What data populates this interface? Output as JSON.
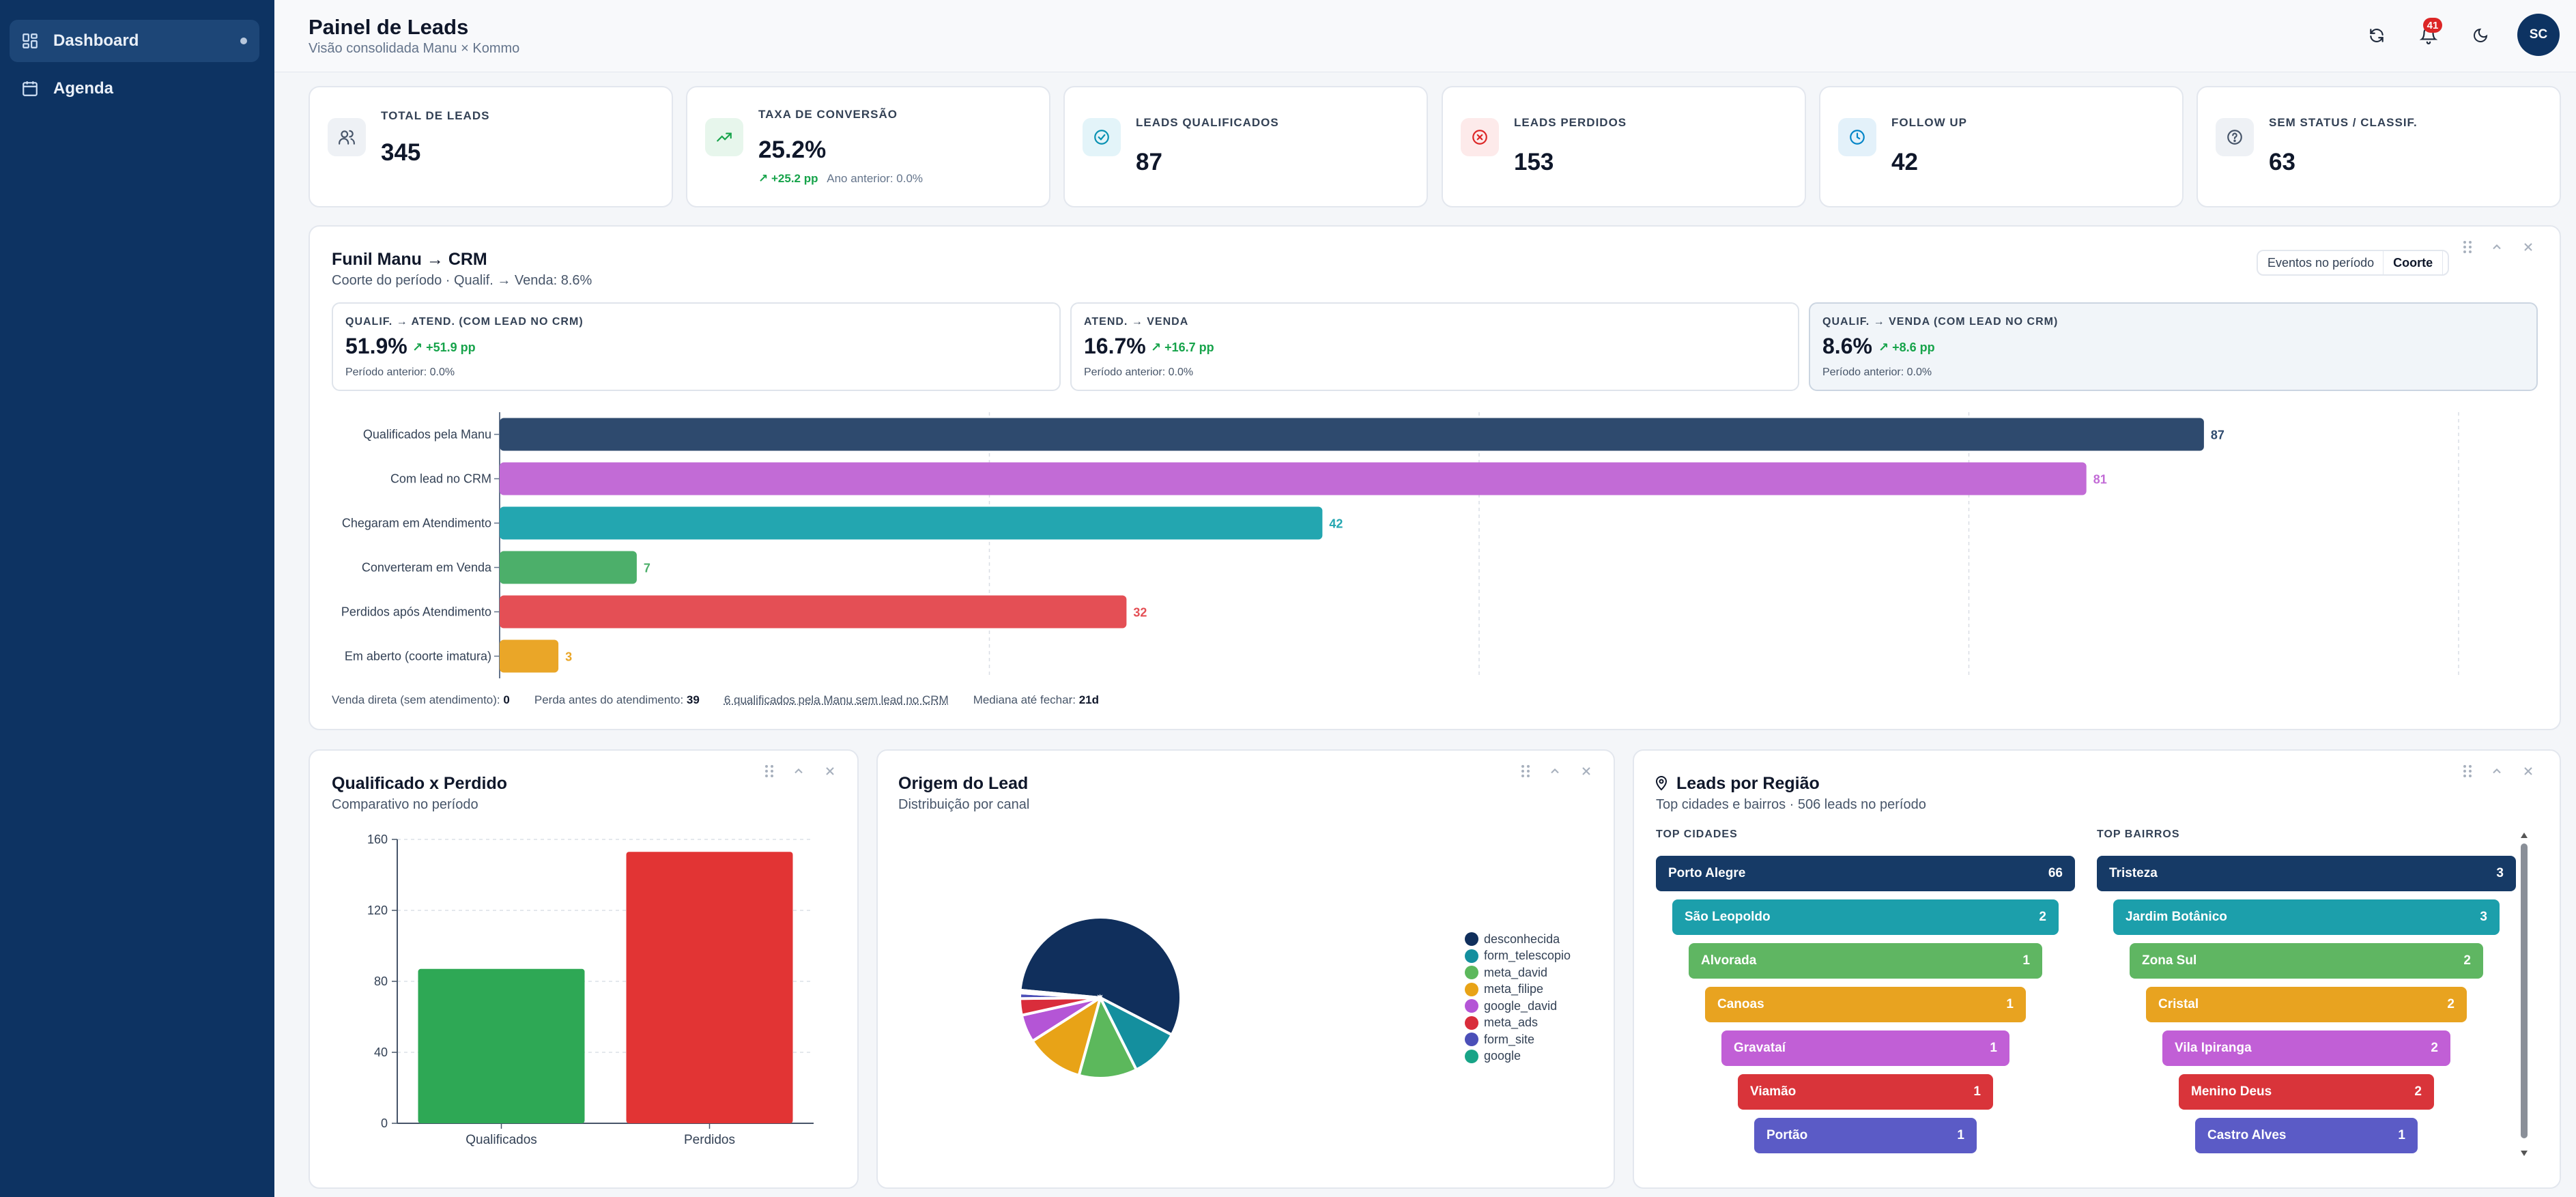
{
  "sidebar": {
    "items": [
      {
        "label": "Dashboard",
        "icon": "dashboard-icon",
        "active": true
      },
      {
        "label": "Agenda",
        "icon": "calendar-icon",
        "active": false
      }
    ]
  },
  "header": {
    "title": "Painel de Leads",
    "subtitle": "Visão consolidada Manu × Kommo",
    "notifications_count": "41",
    "avatar_initials": "SC"
  },
  "kpis": [
    {
      "label": "TOTAL DE LEADS",
      "value": "345",
      "icon": "users-icon",
      "color": "#475569",
      "bg": "#eef1f5"
    },
    {
      "label": "TAXA DE CONVERSÃO",
      "value": "25.2%",
      "icon": "trending-up-icon",
      "color": "#16a34a",
      "bg": "#e7f6ec",
      "delta": "+25.2 pp",
      "previous": "Ano anterior: 0.0%"
    },
    {
      "label": "LEADS QUALIFICADOS",
      "value": "87",
      "icon": "check-circle-icon",
      "color": "#0891b2",
      "bg": "#e3f4f9"
    },
    {
      "label": "LEADS PERDIDOS",
      "value": "153",
      "icon": "x-circle-icon",
      "color": "#dc2626",
      "bg": "#fdeaea"
    },
    {
      "label": "FOLLOW UP",
      "value": "42",
      "icon": "clock-icon",
      "color": "#0284c7",
      "bg": "#e3f1fa"
    },
    {
      "label": "SEM STATUS / CLASSIF.",
      "value": "63",
      "icon": "help-circle-icon",
      "color": "#475569",
      "bg": "#eef1f5"
    }
  ],
  "funnel": {
    "title": "Funil Manu → CRM",
    "subtitle": "Coorte do período · Qualif. → Venda: 8.6%",
    "toggle": [
      "Eventos no período",
      "Coorte"
    ],
    "metrics": [
      {
        "label": "QUALIF. → ATEND. (COM LEAD NO CRM)",
        "value": "51.9%",
        "delta": "+51.9 pp",
        "previous": "Período anterior: 0.0%"
      },
      {
        "label": "ATEND. → VENDA",
        "value": "16.7%",
        "delta": "+16.7 pp",
        "previous": "Período anterior: 0.0%"
      },
      {
        "label": "QUALIF. → VENDA (COM LEAD NO CRM)",
        "value": "8.6%",
        "delta": "+8.6 pp",
        "previous": "Período anterior: 0.0%"
      }
    ],
    "footer": {
      "direct_sale_label": "Venda direta (sem atendimento):",
      "direct_sale_value": "0",
      "lost_before_label": "Perda antes do atendimento:",
      "lost_before_value": "39",
      "no_crm_link": "6 qualificados pela Manu sem lead no CRM",
      "median_label": "Mediana até fechar:",
      "median_value": "21d"
    }
  },
  "qual_vs_lost": {
    "title": "Qualificado x Perdido",
    "subtitle": "Comparativo no período"
  },
  "origin": {
    "title": "Origem do Lead",
    "subtitle": "Distribuição por canal"
  },
  "regions": {
    "title": "Leads por Região",
    "subtitle": "Top cidades e bairros · 506 leads no período",
    "cities_header": "TOP CIDADES",
    "neighborhoods_header": "TOP BAIRROS",
    "cities": [
      {
        "name": "Porto Alegre",
        "count": "66",
        "color": "#163a66"
      },
      {
        "name": "São Leopoldo",
        "count": "2",
        "color": "#1c9fab"
      },
      {
        "name": "Alvorada",
        "count": "1",
        "color": "#5fb662"
      },
      {
        "name": "Canoas",
        "count": "1",
        "color": "#e8a320"
      },
      {
        "name": "Gravataí",
        "count": "1",
        "color": "#c15fd6"
      },
      {
        "name": "Viamão",
        "count": "1",
        "color": "#d9343a"
      },
      {
        "name": "Portão",
        "count": "1",
        "color": "#5b5bc6"
      }
    ],
    "neighborhoods": [
      {
        "name": "Tristeza",
        "count": "3",
        "color": "#163a66"
      },
      {
        "name": "Jardim Botânico",
        "count": "3",
        "color": "#1c9fab"
      },
      {
        "name": "Zona Sul",
        "count": "2",
        "color": "#5fb662"
      },
      {
        "name": "Cristal",
        "count": "2",
        "color": "#e8a320"
      },
      {
        "name": "Vila Ipiranga",
        "count": "2",
        "color": "#c15fd6"
      },
      {
        "name": "Menino Deus",
        "count": "2",
        "color": "#d9343a"
      },
      {
        "name": "Castro Alves",
        "count": "1",
        "color": "#5b5bc6"
      }
    ]
  },
  "chart_data": [
    {
      "type": "bar",
      "orientation": "horizontal",
      "title": "Funil Manu → CRM",
      "categories": [
        "Qualificados pela Manu",
        "Com lead no CRM",
        "Chegaram em Atendimento",
        "Converteram em Venda",
        "Perdidos após Atendimento",
        "Em aberto (coorte imatura)"
      ],
      "values": [
        87,
        81,
        42,
        7,
        32,
        3
      ],
      "colors": [
        "#2e4a6e",
        "#c26bd6",
        "#23a6b0",
        "#4caf6a",
        "#e44f55",
        "#eaa628"
      ],
      "xlim": [
        0,
        100
      ],
      "grid": true
    },
    {
      "type": "bar",
      "title": "Qualificado x Perdido",
      "categories": [
        "Qualificados",
        "Perdidos"
      ],
      "values": [
        87,
        153
      ],
      "colors": [
        "#2ea855",
        "#e23434"
      ],
      "ylim": [
        0,
        160
      ],
      "yticks": [
        0,
        40,
        80,
        120,
        160
      ],
      "grid": true
    },
    {
      "type": "pie",
      "title": "Origem do Lead",
      "labels": [
        "desconhecida",
        "form_telescopio",
        "meta_david",
        "meta_filipe",
        "google_david",
        "meta_ads",
        "form_site",
        "google"
      ],
      "values": [
        50.5,
        9,
        10.5,
        10.5,
        5,
        3,
        1,
        0.5
      ],
      "colors": [
        "#102f5c",
        "#148f9e",
        "#5cb85c",
        "#e8a317",
        "#b455d6",
        "#d92d3b",
        "#4b4fb8",
        "#18a487"
      ],
      "legend": "right"
    }
  ]
}
